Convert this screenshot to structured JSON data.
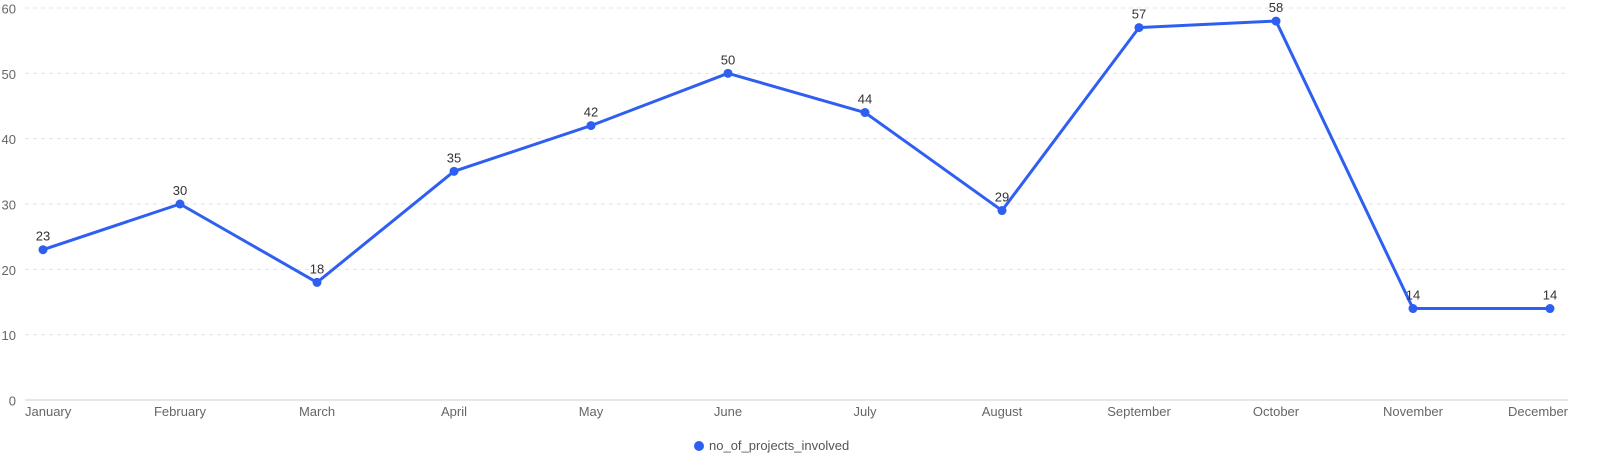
{
  "chart_data": {
    "type": "line",
    "title": "",
    "xlabel": "",
    "ylabel": "",
    "categories": [
      "January",
      "February",
      "March",
      "April",
      "May",
      "June",
      "July",
      "August",
      "September",
      "October",
      "November",
      "December"
    ],
    "series": [
      {
        "name": "no_of_projects_involved",
        "color": "#2f5ff0",
        "values": [
          23,
          30,
          18,
          35,
          42,
          50,
          44,
          29,
          57,
          58,
          14,
          14
        ]
      }
    ],
    "ylim": [
      0,
      60
    ],
    "yticks": [
      0,
      10,
      20,
      30,
      40,
      50,
      60
    ],
    "grid": true,
    "legend_position": "bottom-center"
  }
}
